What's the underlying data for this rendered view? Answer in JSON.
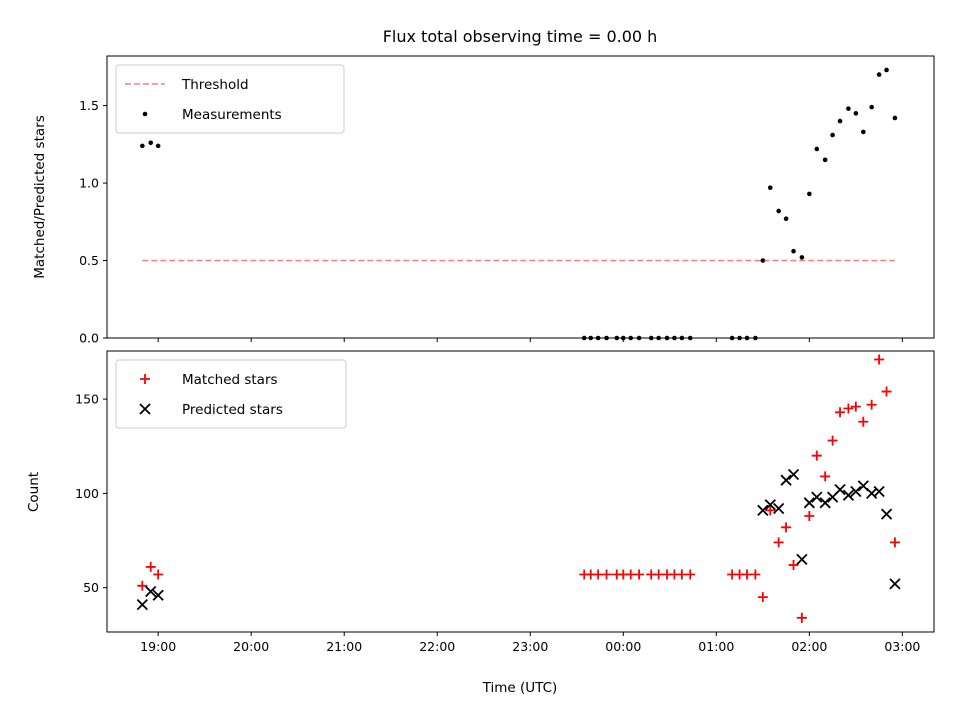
{
  "chart_data": [
    {
      "type": "scatter",
      "title": "Flux total observing time = 0.00 h",
      "ylabel": "Matched/Predicted stars",
      "xlabel": "",
      "xlim": [
        18.45,
        27.34
      ],
      "ylim": [
        0,
        1.82
      ],
      "yticks": [
        0.0,
        0.5,
        1.0,
        1.5
      ],
      "yticklabels": [
        "0.0",
        "0.5",
        "1.0",
        "1.5"
      ],
      "xtick_hours": [
        19,
        20,
        21,
        22,
        23,
        24,
        25,
        26,
        27
      ],
      "xticklabels_shown": false,
      "grid": false,
      "legend_position": "top-left",
      "threshold": {
        "name": "Threshold",
        "value": 0.5,
        "x_range": [
          18.83,
          26.92
        ],
        "color": "#ff7f7f",
        "style": "dashed"
      },
      "series": [
        {
          "name": "Measurements",
          "marker": "dot",
          "color": "#000000",
          "x": [
            18.83,
            18.92,
            19.0,
            23.58,
            23.65,
            23.73,
            23.82,
            23.93,
            24.0,
            24.08,
            24.17,
            24.3,
            24.38,
            24.47,
            24.55,
            24.63,
            24.72,
            25.17,
            25.25,
            25.33,
            25.42,
            25.5,
            25.58,
            25.67,
            25.75,
            25.83,
            25.92,
            26.0,
            26.08,
            26.17,
            26.25,
            26.33,
            26.42,
            26.5,
            26.58,
            26.67,
            26.75,
            26.83,
            26.92
          ],
          "y": [
            1.24,
            1.26,
            1.24,
            0.0,
            0.0,
            0.0,
            0.0,
            0.0,
            0.0,
            0.0,
            0.0,
            0.0,
            0.0,
            0.0,
            0.0,
            0.0,
            0.0,
            0.0,
            0.0,
            0.0,
            0.0,
            0.5,
            0.97,
            0.82,
            0.77,
            0.56,
            0.52,
            0.93,
            1.22,
            1.15,
            1.31,
            1.4,
            1.48,
            1.45,
            1.33,
            1.49,
            1.7,
            1.73,
            1.42
          ]
        }
      ]
    },
    {
      "type": "scatter",
      "title": "",
      "ylabel": "Count",
      "xlabel": "Time (UTC)",
      "xlim": [
        18.45,
        27.34
      ],
      "ylim": [
        26.5,
        175.5
      ],
      "yticks": [
        50,
        100,
        150
      ],
      "yticklabels": [
        "50",
        "100",
        "150"
      ],
      "xtick_hours": [
        19,
        20,
        21,
        22,
        23,
        24,
        25,
        26,
        27
      ],
      "xticklabels": [
        "19:00",
        "20:00",
        "21:00",
        "22:00",
        "23:00",
        "00:00",
        "01:00",
        "02:00",
        "03:00"
      ],
      "grid": false,
      "legend_position": "top-left",
      "series": [
        {
          "name": "Matched stars",
          "marker": "plus",
          "color": "#ff0000",
          "x": [
            18.83,
            18.92,
            19.0,
            23.58,
            23.65,
            23.73,
            23.82,
            23.93,
            24.0,
            24.08,
            24.17,
            24.3,
            24.38,
            24.47,
            24.55,
            24.63,
            24.72,
            25.17,
            25.25,
            25.33,
            25.42,
            25.5,
            25.58,
            25.67,
            25.75,
            25.83,
            25.92,
            26.0,
            26.08,
            26.17,
            26.25,
            26.33,
            26.42,
            26.5,
            26.58,
            26.67,
            26.75,
            26.83,
            26.92
          ],
          "y": [
            51,
            61,
            57,
            57,
            57,
            57,
            57,
            57,
            57,
            57,
            57,
            57,
            57,
            57,
            57,
            57,
            57,
            57,
            57,
            57,
            57,
            45,
            91,
            74,
            82,
            62,
            34,
            88,
            120,
            109,
            128,
            143,
            145,
            146,
            138,
            147,
            171,
            154,
            74
          ]
        },
        {
          "name": "Predicted stars",
          "marker": "x",
          "color": "#000000",
          "x": [
            18.83,
            18.92,
            19.0,
            25.5,
            25.58,
            25.67,
            25.75,
            25.83,
            25.92,
            26.0,
            26.08,
            26.17,
            26.25,
            26.33,
            26.42,
            26.5,
            26.58,
            26.67,
            26.75,
            26.83,
            26.92
          ],
          "y": [
            41,
            48,
            46,
            91,
            94,
            92,
            107,
            110,
            65,
            95,
            98,
            95,
            98,
            102,
            99,
            101,
            104,
            100,
            101,
            89,
            52
          ]
        }
      ]
    }
  ]
}
